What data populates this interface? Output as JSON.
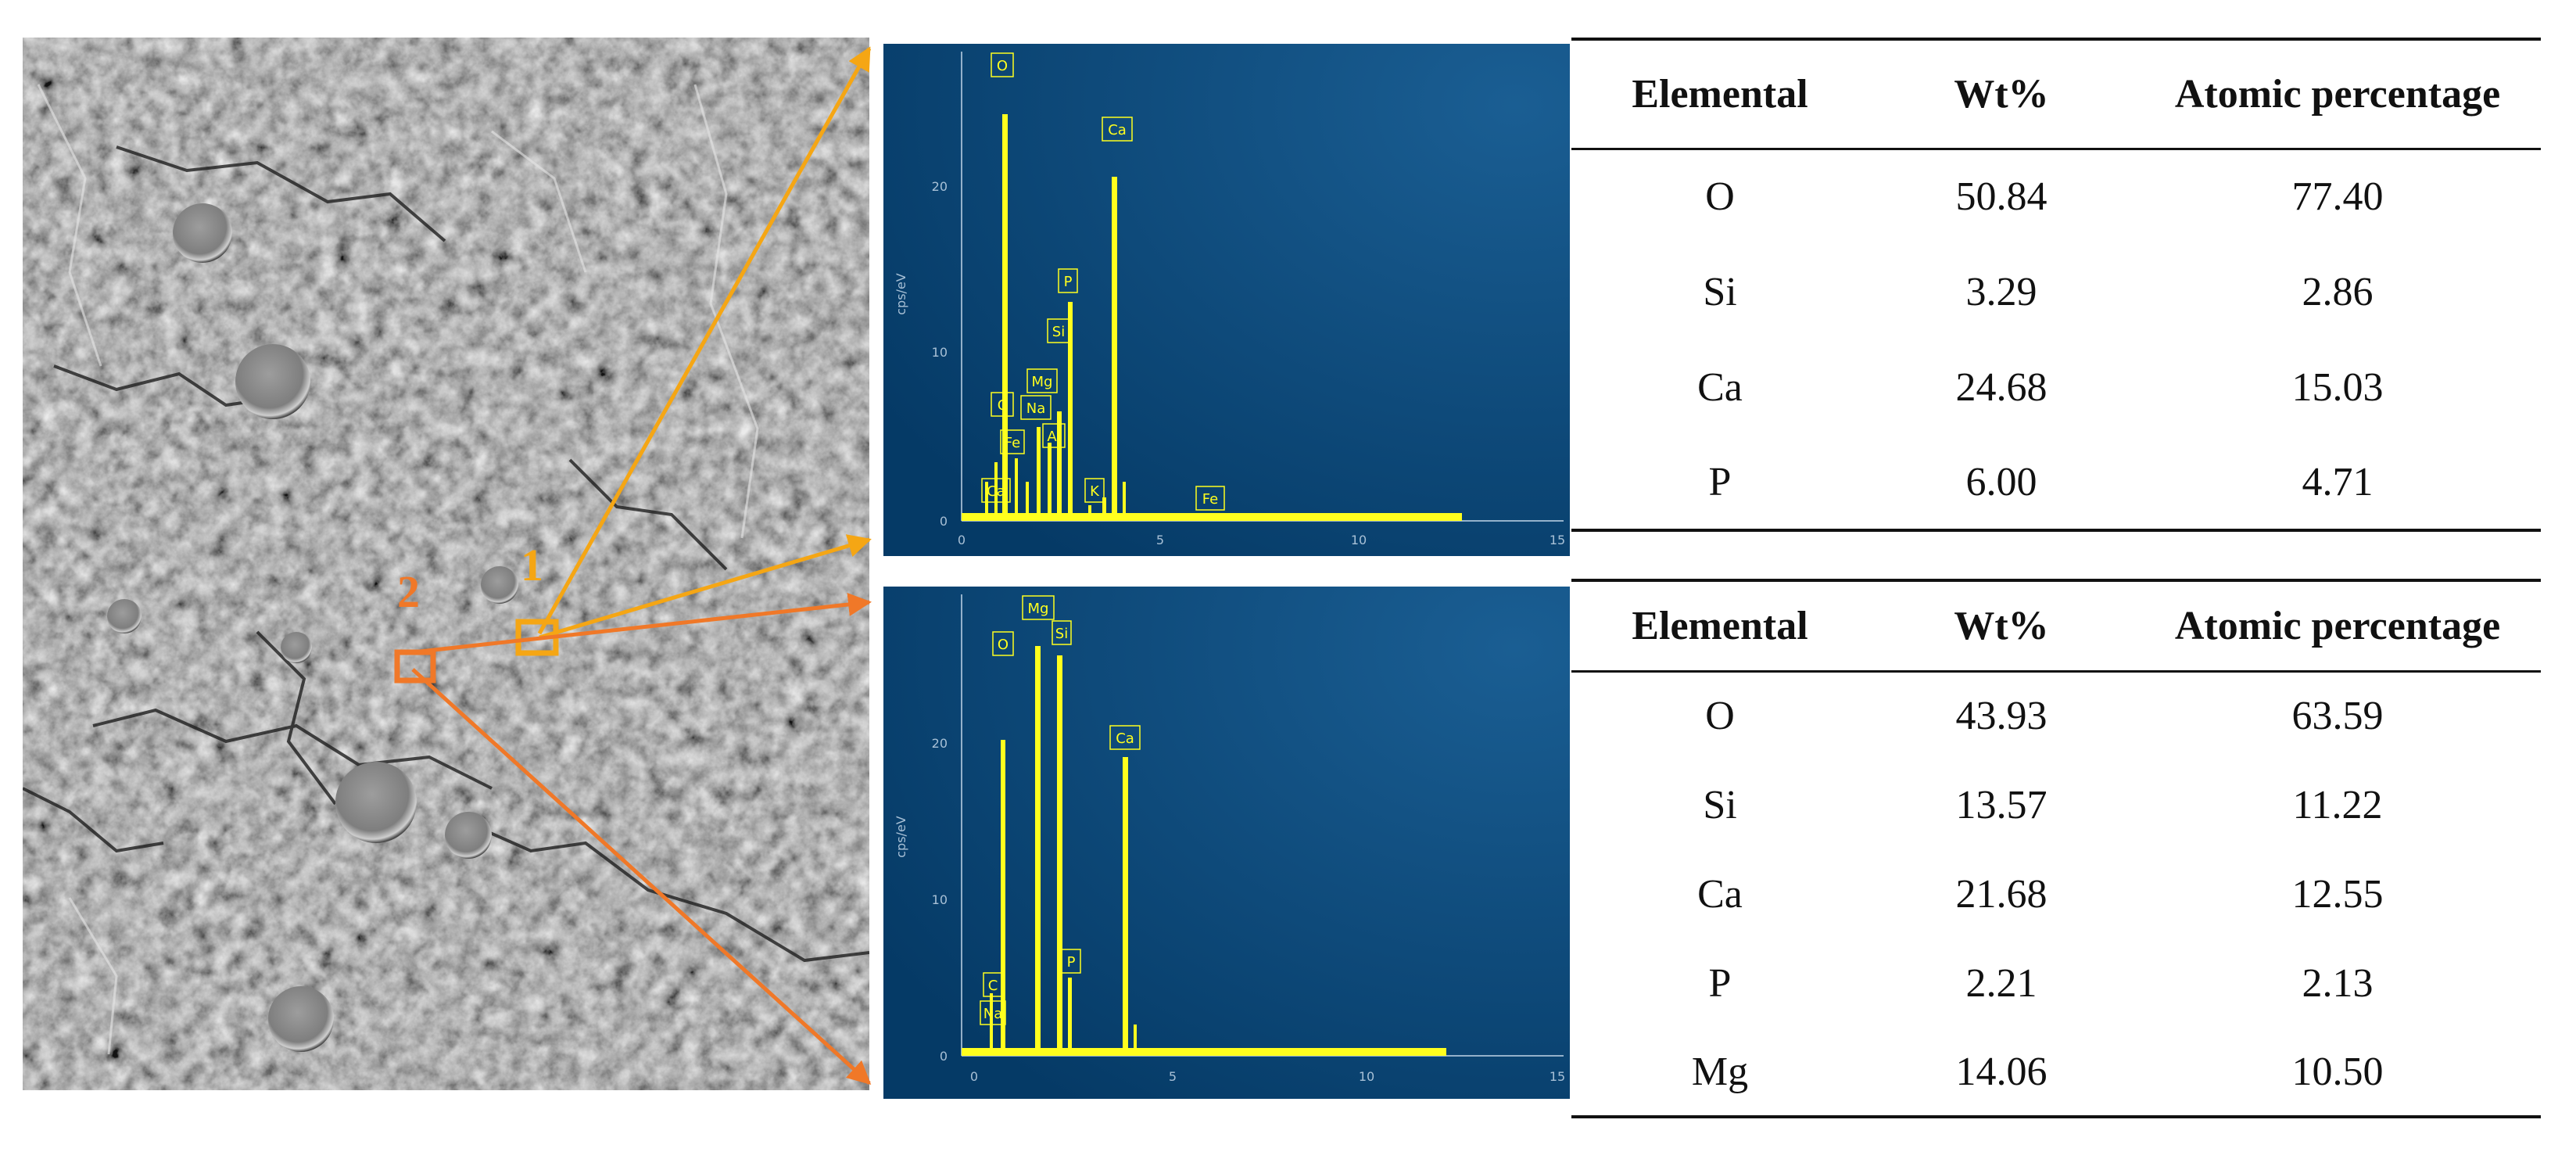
{
  "sem_image": {
    "regions": [
      {
        "label": "1",
        "color": "#F5A614"
      },
      {
        "label": "2",
        "color": "#F07828"
      }
    ]
  },
  "spectra": [
    {
      "axis": {
        "x_ticks": [
          "0",
          "5",
          "10",
          "15"
        ],
        "y_ticks": [
          "0",
          "10",
          "20"
        ],
        "ylabel": "cps/eV"
      },
      "peak_labels": [
        "O",
        "Ca",
        "P",
        "Si",
        "Mg",
        "C",
        "Na",
        "Fe",
        "Al",
        "Ca",
        "K",
        "Fe"
      ]
    },
    {
      "axis": {
        "x_ticks": [
          "0",
          "5",
          "10",
          "15"
        ],
        "y_ticks": [
          "0",
          "10",
          "20"
        ],
        "ylabel": "cps/eV"
      },
      "peak_labels": [
        "Mg",
        "O",
        "Si",
        "Ca",
        "P",
        "C",
        "Na"
      ]
    }
  ],
  "tables": [
    {
      "headers": [
        "Elemental",
        "Wt%",
        "Atomic percentage"
      ],
      "rows": [
        [
          "O",
          "50.84",
          "77.40"
        ],
        [
          "Si",
          "3.29",
          "2.86"
        ],
        [
          "Ca",
          "24.68",
          "15.03"
        ],
        [
          "P",
          "6.00",
          "4.71"
        ]
      ]
    },
    {
      "headers": [
        "Elemental",
        "Wt%",
        "Atomic percentage"
      ],
      "rows": [
        [
          "O",
          "43.93",
          "63.59"
        ],
        [
          "Si",
          "13.57",
          "11.22"
        ],
        [
          "Ca",
          "21.68",
          "12.55"
        ],
        [
          "P",
          "2.21",
          "2.13"
        ],
        [
          "Mg",
          "14.06",
          "10.50"
        ]
      ]
    }
  ],
  "colors": {
    "spectrum_bg_dark": "#053A66",
    "spectrum_bg_light": "#1A5E93",
    "peak": "#FFFF1E",
    "sem_base": "#7A7A7A"
  }
}
